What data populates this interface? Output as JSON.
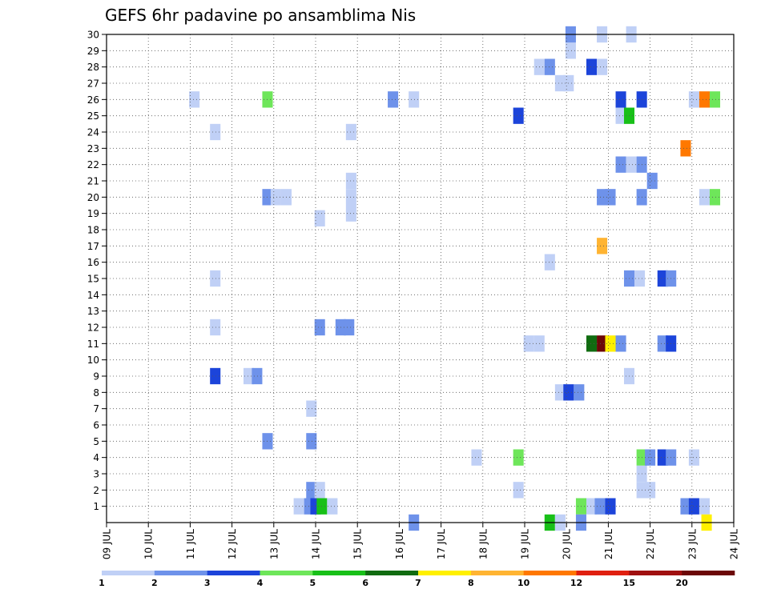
{
  "chart_data": {
    "type": "heatmap",
    "title": "GEFS 6hr padavine po ansamblima Nis",
    "xlabel": "",
    "ylabel": "",
    "x_start_day": 9,
    "x_end_day": 24,
    "steps_per_day": 4,
    "x_tick_labels": [
      "09 JUL",
      "10 JUL",
      "11 JUL",
      "12 JUL",
      "13 JUL",
      "14 JUL",
      "15 JUL",
      "16 JUL",
      "17 JUL",
      "18 JUL",
      "19 JUL",
      "20 JUL",
      "21 JUL",
      "22 JUL",
      "23 JUL",
      "24 JUL"
    ],
    "y_tick_labels": [
      "1",
      "2",
      "3",
      "4",
      "5",
      "6",
      "7",
      "8",
      "9",
      "10",
      "11",
      "12",
      "13",
      "14",
      "15",
      "16",
      "17",
      "18",
      "19",
      "20",
      "21",
      "22",
      "23",
      "24",
      "25",
      "26",
      "27",
      "28",
      "29",
      "30"
    ],
    "ylim": [
      0,
      30
    ],
    "grid": true,
    "colorbar": {
      "position": "bottom",
      "colors": [
        "#c0d0f6",
        "#6e92ea",
        "#1c44da",
        "#6ee65a",
        "#18c018",
        "#106c10",
        "#fff000",
        "#ffb432",
        "#ff7800",
        "#e02010",
        "#a01010",
        "#6c0808"
      ],
      "labels": [
        "1",
        "2",
        "3",
        "4",
        "5",
        "6",
        "7",
        "8",
        "10",
        "12",
        "15",
        "20"
      ]
    },
    "cells": [
      {
        "d": 11.1,
        "m": 26,
        "c": 1
      },
      {
        "d": 11.6,
        "m": 24,
        "c": 1
      },
      {
        "d": 11.6,
        "m": 15,
        "c": 1
      },
      {
        "d": 11.6,
        "m": 12,
        "c": 1
      },
      {
        "d": 11.6,
        "m": 9,
        "c": 3
      },
      {
        "d": 12.4,
        "m": 9,
        "c": 1
      },
      {
        "d": 12.6,
        "m": 9,
        "c": 2
      },
      {
        "d": 12.85,
        "m": 26,
        "c": 4
      },
      {
        "d": 12.85,
        "m": 20,
        "c": 2
      },
      {
        "d": 13.05,
        "m": 20,
        "c": 1
      },
      {
        "d": 13.3,
        "m": 20,
        "c": 1
      },
      {
        "d": 12.85,
        "m": 5,
        "c": 2
      },
      {
        "d": 13.9,
        "m": 7,
        "c": 1
      },
      {
        "d": 13.9,
        "m": 5,
        "c": 2
      },
      {
        "d": 13.9,
        "m": 2,
        "c": 2
      },
      {
        "d": 14.1,
        "m": 2,
        "c": 1
      },
      {
        "d": 13.6,
        "m": 1,
        "c": 1
      },
      {
        "d": 13.85,
        "m": 1,
        "c": 2
      },
      {
        "d": 14.0,
        "m": 1,
        "c": 3
      },
      {
        "d": 14.15,
        "m": 1,
        "c": 5
      },
      {
        "d": 14.4,
        "m": 1,
        "c": 1
      },
      {
        "d": 14.1,
        "m": 18.7,
        "c": 1
      },
      {
        "d": 14.1,
        "m": 12,
        "c": 2
      },
      {
        "d": 14.6,
        "m": 12,
        "c": 2
      },
      {
        "d": 14.8,
        "m": 12,
        "c": 2
      },
      {
        "d": 14.85,
        "m": 24,
        "c": 1
      },
      {
        "d": 14.85,
        "m": 21,
        "c": 1
      },
      {
        "d": 14.85,
        "m": 20,
        "c": 1
      },
      {
        "d": 14.85,
        "m": 19,
        "c": 1
      },
      {
        "d": 15.85,
        "m": 26,
        "c": 2
      },
      {
        "d": 16.35,
        "m": 26,
        "c": 1
      },
      {
        "d": 16.35,
        "m": 0,
        "c": 2
      },
      {
        "d": 17.85,
        "m": 4,
        "c": 1
      },
      {
        "d": 18.85,
        "m": 25,
        "c": 3
      },
      {
        "d": 18.85,
        "m": 4,
        "c": 4
      },
      {
        "d": 18.85,
        "m": 2,
        "c": 1
      },
      {
        "d": 19.1,
        "m": 11,
        "c": 1
      },
      {
        "d": 19.35,
        "m": 11,
        "c": 1
      },
      {
        "d": 19.35,
        "m": 28,
        "c": 1
      },
      {
        "d": 19.6,
        "m": 28,
        "c": 2
      },
      {
        "d": 19.6,
        "m": 16,
        "c": 1
      },
      {
        "d": 19.6,
        "m": 0,
        "c": 5
      },
      {
        "d": 19.85,
        "m": 0,
        "c": 1
      },
      {
        "d": 19.85,
        "m": 27,
        "c": 1
      },
      {
        "d": 20.05,
        "m": 27,
        "c": 1
      },
      {
        "d": 20.1,
        "m": 29,
        "c": 1
      },
      {
        "d": 20.1,
        "m": 30,
        "c": 2
      },
      {
        "d": 19.85,
        "m": 8,
        "c": 1
      },
      {
        "d": 20.05,
        "m": 8,
        "c": 3
      },
      {
        "d": 20.3,
        "m": 8,
        "c": 2
      },
      {
        "d": 20.35,
        "m": 1,
        "c": 4
      },
      {
        "d": 20.35,
        "m": 0,
        "c": 2
      },
      {
        "d": 20.6,
        "m": 1,
        "c": 1
      },
      {
        "d": 20.8,
        "m": 1,
        "c": 2
      },
      {
        "d": 21.05,
        "m": 1,
        "c": 3
      },
      {
        "d": 20.6,
        "m": 28,
        "c": 3
      },
      {
        "d": 20.85,
        "m": 28,
        "c": 1
      },
      {
        "d": 20.85,
        "m": 30,
        "c": 1
      },
      {
        "d": 20.6,
        "m": 11,
        "c": 6
      },
      {
        "d": 20.85,
        "m": 11,
        "c": 12
      },
      {
        "d": 21.05,
        "m": 11,
        "c": 7
      },
      {
        "d": 21.3,
        "m": 11,
        "c": 2
      },
      {
        "d": 20.85,
        "m": 20,
        "c": 2
      },
      {
        "d": 21.05,
        "m": 20,
        "c": 2
      },
      {
        "d": 20.85,
        "m": 17,
        "c": 8
      },
      {
        "d": 21.3,
        "m": 26,
        "c": 3
      },
      {
        "d": 21.3,
        "m": 25,
        "c": 1
      },
      {
        "d": 21.5,
        "m": 25,
        "c": 5
      },
      {
        "d": 21.3,
        "m": 22,
        "c": 2
      },
      {
        "d": 21.55,
        "m": 22,
        "c": 1
      },
      {
        "d": 21.8,
        "m": 22,
        "c": 2
      },
      {
        "d": 22.05,
        "m": 21,
        "c": 2
      },
      {
        "d": 21.55,
        "m": 30,
        "c": 1
      },
      {
        "d": 21.5,
        "m": 15,
        "c": 2
      },
      {
        "d": 21.75,
        "m": 15,
        "c": 1
      },
      {
        "d": 21.5,
        "m": 9,
        "c": 1
      },
      {
        "d": 21.8,
        "m": 26,
        "c": 3
      },
      {
        "d": 21.8,
        "m": 20,
        "c": 2
      },
      {
        "d": 21.8,
        "m": 4,
        "c": 4
      },
      {
        "d": 21.8,
        "m": 3,
        "c": 1
      },
      {
        "d": 21.8,
        "m": 2,
        "c": 1
      },
      {
        "d": 22.0,
        "m": 2,
        "c": 1
      },
      {
        "d": 22.0,
        "m": 4,
        "c": 2
      },
      {
        "d": 22.3,
        "m": 4,
        "c": 3
      },
      {
        "d": 22.5,
        "m": 4,
        "c": 2
      },
      {
        "d": 22.3,
        "m": 15,
        "c": 3
      },
      {
        "d": 22.5,
        "m": 15,
        "c": 2
      },
      {
        "d": 22.3,
        "m": 11,
        "c": 2
      },
      {
        "d": 22.5,
        "m": 11,
        "c": 3
      },
      {
        "d": 22.85,
        "m": 23,
        "c": 9
      },
      {
        "d": 22.85,
        "m": 1,
        "c": 2
      },
      {
        "d": 23.05,
        "m": 1,
        "c": 3
      },
      {
        "d": 23.3,
        "m": 1,
        "c": 1
      },
      {
        "d": 23.35,
        "m": 0,
        "c": 7
      },
      {
        "d": 23.05,
        "m": 26,
        "c": 1
      },
      {
        "d": 23.3,
        "m": 26,
        "c": 9
      },
      {
        "d": 23.55,
        "m": 26,
        "c": 4
      },
      {
        "d": 23.05,
        "m": 4,
        "c": 1
      },
      {
        "d": 23.3,
        "m": 20,
        "c": 1
      },
      {
        "d": 23.55,
        "m": 20,
        "c": 4
      }
    ]
  }
}
